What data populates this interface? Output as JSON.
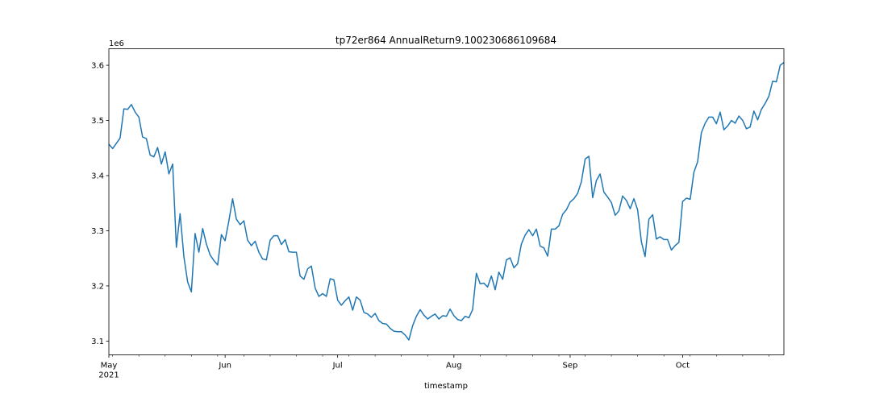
{
  "chart_data": {
    "type": "line",
    "title": "tp72er864 AnnualReturn9.100230686109684",
    "xlabel": "timestamp",
    "ylabel": "",
    "y_offset_label": "1e6",
    "y_multiplier": 1000000,
    "ylim": [
      3.075,
      3.63
    ],
    "xlim": [
      "2021-05-01",
      "2021-10-28"
    ],
    "grid": false,
    "line_color": "#1f77b4",
    "x_major_ticks": [
      {
        "date": "2021-05-01",
        "label": "May",
        "sublabel": "2021"
      },
      {
        "date": "2021-06-01",
        "label": "Jun",
        "sublabel": ""
      },
      {
        "date": "2021-07-01",
        "label": "Jul",
        "sublabel": ""
      },
      {
        "date": "2021-08-01",
        "label": "Aug",
        "sublabel": ""
      },
      {
        "date": "2021-09-01",
        "label": "Sep",
        "sublabel": ""
      },
      {
        "date": "2021-10-01",
        "label": "Oct",
        "sublabel": ""
      }
    ],
    "y_ticks": [
      3.1,
      3.2,
      3.3,
      3.4,
      3.5,
      3.6
    ],
    "y_tick_labels": [
      "3.1",
      "3.2",
      "3.3",
      "3.4",
      "3.5",
      "3.6"
    ],
    "series": [
      {
        "x": [
          "2021-05-01",
          "2021-05-02",
          "2021-05-04",
          "2021-05-05",
          "2021-05-06",
          "2021-05-07",
          "2021-05-08",
          "2021-05-09",
          "2021-05-10",
          "2021-05-11",
          "2021-05-12",
          "2021-05-13",
          "2021-05-14",
          "2021-05-15",
          "2021-05-16",
          "2021-05-17",
          "2021-05-18",
          "2021-05-19",
          "2021-05-20",
          "2021-05-21",
          "2021-05-22",
          "2021-05-23",
          "2021-05-24",
          "2021-05-25",
          "2021-05-26",
          "2021-05-27",
          "2021-05-28",
          "2021-05-29",
          "2021-05-30",
          "2021-05-31",
          "2021-06-01",
          "2021-06-02",
          "2021-06-03",
          "2021-06-04",
          "2021-06-05",
          "2021-06-06",
          "2021-06-07",
          "2021-06-08",
          "2021-06-09",
          "2021-06-10",
          "2021-06-11",
          "2021-06-12",
          "2021-06-13",
          "2021-06-14",
          "2021-06-15",
          "2021-06-16",
          "2021-06-17",
          "2021-06-18",
          "2021-06-19",
          "2021-06-20",
          "2021-06-21",
          "2021-06-22",
          "2021-06-23",
          "2021-06-24",
          "2021-06-25",
          "2021-06-26",
          "2021-06-27",
          "2021-06-28",
          "2021-06-29",
          "2021-06-30",
          "2021-07-01",
          "2021-07-02",
          "2021-07-03",
          "2021-07-04",
          "2021-07-05",
          "2021-07-06",
          "2021-07-07",
          "2021-07-08",
          "2021-07-09",
          "2021-07-10",
          "2021-07-11",
          "2021-07-12",
          "2021-07-13",
          "2021-07-14",
          "2021-07-15",
          "2021-07-16",
          "2021-07-17",
          "2021-07-18",
          "2021-07-19",
          "2021-07-20",
          "2021-07-21",
          "2021-07-22",
          "2021-07-23",
          "2021-07-24",
          "2021-07-25",
          "2021-07-26",
          "2021-07-27",
          "2021-07-28",
          "2021-07-29",
          "2021-07-30",
          "2021-07-31",
          "2021-08-01",
          "2021-08-02",
          "2021-08-03",
          "2021-08-04",
          "2021-08-05",
          "2021-08-06",
          "2021-08-07",
          "2021-08-08",
          "2021-08-09",
          "2021-08-10",
          "2021-08-11",
          "2021-08-12",
          "2021-08-13",
          "2021-08-14",
          "2021-08-15",
          "2021-08-16",
          "2021-08-17",
          "2021-08-18",
          "2021-08-19",
          "2021-08-20",
          "2021-08-21",
          "2021-08-22",
          "2021-08-23",
          "2021-08-24",
          "2021-08-25",
          "2021-08-26",
          "2021-08-27",
          "2021-08-28",
          "2021-08-29",
          "2021-08-30",
          "2021-08-31",
          "2021-09-01",
          "2021-09-02",
          "2021-09-03",
          "2021-09-04",
          "2021-09-05",
          "2021-09-06",
          "2021-09-07",
          "2021-09-08",
          "2021-09-09",
          "2021-09-10",
          "2021-09-11",
          "2021-09-12",
          "2021-09-13",
          "2021-09-14",
          "2021-09-15",
          "2021-09-16",
          "2021-09-17",
          "2021-09-18",
          "2021-09-19",
          "2021-09-20",
          "2021-09-21",
          "2021-09-22",
          "2021-09-23",
          "2021-09-24",
          "2021-09-25",
          "2021-09-26",
          "2021-09-27",
          "2021-09-28",
          "2021-09-29",
          "2021-09-30",
          "2021-10-01",
          "2021-10-02",
          "2021-10-03",
          "2021-10-04",
          "2021-10-05",
          "2021-10-06",
          "2021-10-07",
          "2021-10-08",
          "2021-10-09",
          "2021-10-10",
          "2021-10-11",
          "2021-10-12",
          "2021-10-13",
          "2021-10-14",
          "2021-10-15",
          "2021-10-16",
          "2021-10-17",
          "2021-10-18",
          "2021-10-19",
          "2021-10-20",
          "2021-10-21",
          "2021-10-22",
          "2021-10-23",
          "2021-10-24",
          "2021-10-25",
          "2021-10-26",
          "2021-10-27",
          "2021-10-28"
        ],
        "y": [
          3.457,
          3.449,
          3.468,
          3.521,
          3.52,
          3.529,
          3.515,
          3.506,
          3.47,
          3.467,
          3.437,
          3.434,
          3.451,
          3.421,
          3.443,
          3.403,
          3.421,
          3.27,
          3.331,
          3.253,
          3.207,
          3.189,
          3.295,
          3.261,
          3.304,
          3.276,
          3.256,
          3.246,
          3.238,
          3.293,
          3.282,
          3.318,
          3.358,
          3.321,
          3.311,
          3.318,
          3.283,
          3.273,
          3.281,
          3.261,
          3.249,
          3.247,
          3.283,
          3.291,
          3.291,
          3.275,
          3.284,
          3.262,
          3.261,
          3.261,
          3.218,
          3.212,
          3.231,
          3.236,
          3.196,
          3.181,
          3.186,
          3.181,
          3.213,
          3.211,
          3.174,
          3.165,
          3.173,
          3.18,
          3.156,
          3.18,
          3.174,
          3.152,
          3.149,
          3.143,
          3.15,
          3.137,
          3.132,
          3.131,
          3.123,
          3.118,
          3.117,
          3.117,
          3.111,
          3.102,
          3.128,
          3.145,
          3.157,
          3.147,
          3.14,
          3.145,
          3.149,
          3.14,
          3.146,
          3.145,
          3.158,
          3.146,
          3.139,
          3.137,
          3.145,
          3.142,
          3.157,
          3.223,
          3.204,
          3.205,
          3.198,
          3.218,
          3.193,
          3.225,
          3.212,
          3.247,
          3.251,
          3.233,
          3.24,
          3.276,
          3.292,
          3.302,
          3.291,
          3.303,
          3.272,
          3.269,
          3.254,
          3.303,
          3.303,
          3.309,
          3.33,
          3.338,
          3.352,
          3.358,
          3.368,
          3.389,
          3.43,
          3.435,
          3.36,
          3.391,
          3.403,
          3.37,
          3.361,
          3.351,
          3.328,
          3.336,
          3.363,
          3.355,
          3.34,
          3.358,
          3.338,
          3.28,
          3.253,
          3.321,
          3.329,
          3.285,
          3.289,
          3.284,
          3.284,
          3.265,
          3.273,
          3.279,
          3.353,
          3.359,
          3.357,
          3.406,
          3.425,
          3.478,
          3.495,
          3.506,
          3.506,
          3.494,
          3.515,
          3.483,
          3.49,
          3.5,
          3.495,
          3.508,
          3.5,
          3.485,
          3.488,
          3.517,
          3.501,
          3.52,
          3.531,
          3.544,
          3.571,
          3.57,
          3.6,
          3.605
        ]
      }
    ]
  }
}
